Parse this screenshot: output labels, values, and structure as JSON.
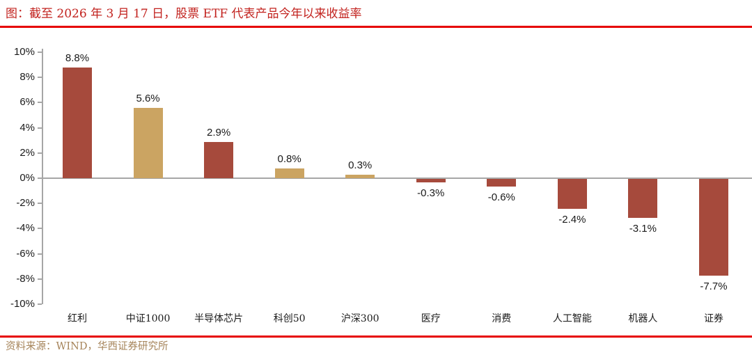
{
  "title": "图：截至 2026 年 3 月 17 日，股票 ETF 代表产品今年以来收益率",
  "source": "资料来源：WIND，华西证券研究所",
  "colors": {
    "title_red": "#C2221E",
    "divider_red": "#E60000",
    "bar_red": "#A64A3C",
    "bar_gold": "#CBA462",
    "axis_gray": "#A6A6A6",
    "label_black": "#1a1a1a",
    "source_gold": "#A6845A"
  },
  "chart_data": {
    "type": "bar",
    "title": "截至 2026 年 3 月 17 日，股票 ETF 代表产品今年以来收益率",
    "categories": [
      "红利",
      "中证1000",
      "半导体芯片",
      "科创50",
      "沪深300",
      "医疗",
      "消费",
      "人工智能",
      "机器人",
      "证券"
    ],
    "values": [
      8.8,
      5.6,
      2.9,
      0.8,
      0.3,
      -0.3,
      -0.6,
      -2.4,
      -3.1,
      -7.7
    ],
    "value_labels": [
      "8.8%",
      "5.6%",
      "2.9%",
      "0.8%",
      "0.3%",
      "-0.3%",
      "-0.6%",
      "-2.4%",
      "-3.1%",
      "-7.7%"
    ],
    "bar_colors": [
      "#A64A3C",
      "#CBA462",
      "#A64A3C",
      "#CBA462",
      "#CBA462",
      "#A64A3C",
      "#A64A3C",
      "#A64A3C",
      "#A64A3C",
      "#A64A3C"
    ],
    "xlabel": "",
    "ylabel": "",
    "y_ticks": [
      "10%",
      "8%",
      "6%",
      "4%",
      "2%",
      "0%",
      "-2%",
      "-4%",
      "-6%",
      "-8%",
      "-10%"
    ],
    "y_tick_values": [
      10,
      8,
      6,
      4,
      2,
      0,
      -2,
      -4,
      -6,
      -8,
      -10
    ],
    "ylim": [
      -10,
      10
    ],
    "grid": false,
    "legend": null,
    "data_labels": true
  }
}
